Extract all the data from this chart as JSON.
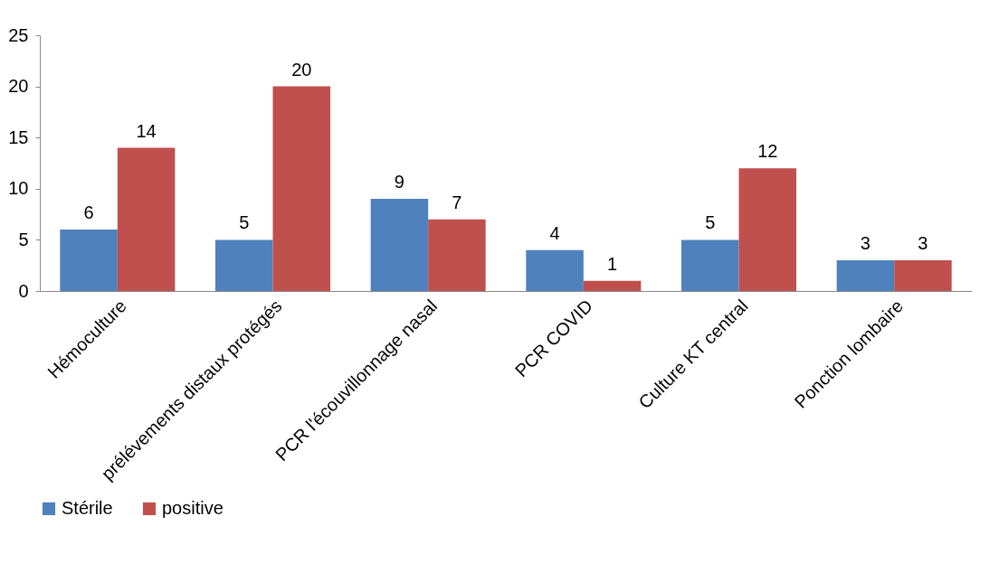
{
  "chart_data": {
    "type": "bar",
    "categories": [
      "Hémoculture",
      "prélévements distaux protégés",
      "PCR l'écouvillonnage nasal",
      "PCR COVID",
      "Culture KT central",
      "Ponction lombaire"
    ],
    "series": [
      {
        "name": "Stérile",
        "color": "#4f81bd",
        "values": [
          6,
          5,
          9,
          4,
          5,
          3
        ]
      },
      {
        "name": "positive",
        "color": "#c0504d",
        "values": [
          14,
          20,
          7,
          1,
          12,
          3
        ]
      }
    ],
    "ylim": [
      0,
      25
    ],
    "yticks": [
      0,
      5,
      10,
      15,
      20,
      25
    ],
    "grid": false,
    "legend": "bottom",
    "data_labels": true
  }
}
